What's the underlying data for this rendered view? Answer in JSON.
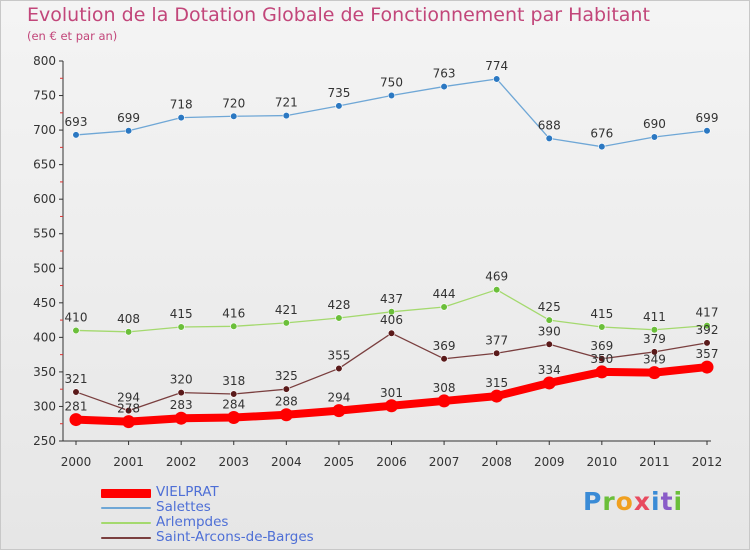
{
  "header": {
    "title": "Evolution de la Dotation Globale de Fonctionnement par Habitant",
    "subtitle": "(en € et par an)"
  },
  "logo": {
    "text": "Proxiti",
    "letters": [
      "P",
      "r",
      "o",
      "x",
      "i",
      "t",
      "i"
    ]
  },
  "chart_data": {
    "type": "line",
    "title": "Evolution de la Dotation Globale de Fonctionnement par Habitant",
    "subtitle": "(en € et par an)",
    "xlabel": "",
    "ylabel": "",
    "ylim": [
      250,
      800
    ],
    "yticks": [
      "250",
      "300",
      "350",
      "400",
      "450",
      "500",
      "550",
      "600",
      "650",
      "700",
      "750",
      "800"
    ],
    "grid": "none",
    "legend_position": "bottom-left",
    "categories": [
      "2000",
      "2001",
      "2002",
      "2003",
      "2004",
      "2005",
      "2006",
      "2007",
      "2008",
      "2009",
      "2010",
      "2011",
      "2012"
    ],
    "series": [
      {
        "name": "VIELPRAT",
        "color": "#ff0000",
        "marker_color": "#ff0000",
        "values": [
          281,
          278,
          283,
          284,
          288,
          294,
          301,
          308,
          315,
          334,
          350,
          349,
          357
        ]
      },
      {
        "name": "Salettes",
        "color": "#6fa7d6",
        "marker_color": "#2b78c2",
        "values": [
          693,
          699,
          718,
          720,
          721,
          735,
          750,
          763,
          774,
          688,
          676,
          690,
          699
        ]
      },
      {
        "name": "Arlempdes",
        "color": "#a4d96e",
        "marker_color": "#6bbf3a",
        "values": [
          410,
          408,
          415,
          416,
          421,
          428,
          437,
          444,
          469,
          425,
          415,
          411,
          417
        ]
      },
      {
        "name": "Saint-Arcons-de-Barges",
        "color": "#7a3f3f",
        "marker_color": "#5a1a1a",
        "values": [
          321,
          294,
          320,
          318,
          325,
          355,
          406,
          369,
          377,
          390,
          369,
          379,
          392
        ]
      }
    ]
  }
}
